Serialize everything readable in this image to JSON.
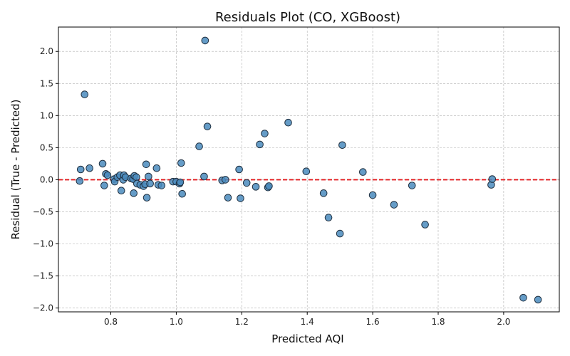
{
  "chart_data": {
    "type": "scatter",
    "title": "Residuals Plot (CO, XGBoost)",
    "xlabel": "Predicted AQI",
    "ylabel": "Residual (True - Predicted)",
    "xlim": [
      0.64,
      2.17
    ],
    "ylim": [
      -2.06,
      2.38
    ],
    "xticks": [
      0.8,
      1.0,
      1.2,
      1.4,
      1.6,
      1.8,
      2.0
    ],
    "xtick_labels": [
      "0.8",
      "1.0",
      "1.2",
      "1.4",
      "1.6",
      "1.8",
      "2.0"
    ],
    "yticks": [
      -2.0,
      -1.5,
      -1.0,
      -0.5,
      0.0,
      0.5,
      1.0,
      1.5,
      2.0
    ],
    "ytick_labels": [
      "−2.0",
      "−1.5",
      "−1.0",
      "−0.5",
      "0.0",
      "0.5",
      "1.0",
      "1.5",
      "2.0"
    ],
    "grid": true,
    "reference_line": {
      "y": 0,
      "style": "dashed",
      "color": "#e31a1c"
    },
    "marker_color": "#4a8bbd",
    "marker_edge_color": "#1f2f3f",
    "points": [
      {
        "x": 0.705,
        "y": -0.02
      },
      {
        "x": 0.708,
        "y": 0.16
      },
      {
        "x": 0.72,
        "y": 1.33
      },
      {
        "x": 0.735,
        "y": 0.18
      },
      {
        "x": 0.775,
        "y": 0.25
      },
      {
        "x": 0.78,
        "y": -0.09
      },
      {
        "x": 0.785,
        "y": 0.09
      },
      {
        "x": 0.79,
        "y": 0.07
      },
      {
        "x": 0.81,
        "y": 0.01
      },
      {
        "x": 0.812,
        "y": -0.03
      },
      {
        "x": 0.82,
        "y": 0.04
      },
      {
        "x": 0.828,
        "y": 0.07
      },
      {
        "x": 0.832,
        "y": -0.17
      },
      {
        "x": 0.838,
        "y": 0.0
      },
      {
        "x": 0.84,
        "y": 0.07
      },
      {
        "x": 0.845,
        "y": 0.04
      },
      {
        "x": 0.862,
        "y": 0.02
      },
      {
        "x": 0.868,
        "y": 0.01
      },
      {
        "x": 0.87,
        "y": -0.21
      },
      {
        "x": 0.872,
        "y": 0.06
      },
      {
        "x": 0.878,
        "y": 0.04
      },
      {
        "x": 0.88,
        "y": -0.06
      },
      {
        "x": 0.89,
        "y": -0.08
      },
      {
        "x": 0.9,
        "y": -0.1
      },
      {
        "x": 0.905,
        "y": -0.07
      },
      {
        "x": 0.908,
        "y": 0.24
      },
      {
        "x": 0.91,
        "y": -0.28
      },
      {
        "x": 0.915,
        "y": 0.05
      },
      {
        "x": 0.92,
        "y": -0.06
      },
      {
        "x": 0.94,
        "y": 0.18
      },
      {
        "x": 0.945,
        "y": -0.08
      },
      {
        "x": 0.955,
        "y": -0.09
      },
      {
        "x": 0.99,
        "y": -0.03
      },
      {
        "x": 1.0,
        "y": -0.03
      },
      {
        "x": 1.01,
        "y": -0.06
      },
      {
        "x": 1.012,
        "y": -0.04
      },
      {
        "x": 1.015,
        "y": 0.26
      },
      {
        "x": 1.018,
        "y": -0.22
      },
      {
        "x": 1.07,
        "y": 0.52
      },
      {
        "x": 1.085,
        "y": 0.05
      },
      {
        "x": 1.088,
        "y": 2.17
      },
      {
        "x": 1.095,
        "y": 0.83
      },
      {
        "x": 1.14,
        "y": -0.01
      },
      {
        "x": 1.15,
        "y": 0.0
      },
      {
        "x": 1.158,
        "y": -0.28
      },
      {
        "x": 1.192,
        "y": 0.16
      },
      {
        "x": 1.196,
        "y": -0.29
      },
      {
        "x": 1.215,
        "y": -0.05
      },
      {
        "x": 1.243,
        "y": -0.11
      },
      {
        "x": 1.255,
        "y": 0.55
      },
      {
        "x": 1.27,
        "y": 0.72
      },
      {
        "x": 1.28,
        "y": -0.12
      },
      {
        "x": 1.283,
        "y": -0.1
      },
      {
        "x": 1.342,
        "y": 0.89
      },
      {
        "x": 1.397,
        "y": 0.13
      },
      {
        "x": 1.45,
        "y": -0.21
      },
      {
        "x": 1.465,
        "y": -0.59
      },
      {
        "x": 1.5,
        "y": -0.84
      },
      {
        "x": 1.507,
        "y": 0.54
      },
      {
        "x": 1.57,
        "y": 0.12
      },
      {
        "x": 1.6,
        "y": -0.24
      },
      {
        "x": 1.665,
        "y": -0.39
      },
      {
        "x": 1.72,
        "y": -0.09
      },
      {
        "x": 1.76,
        "y": -0.7
      },
      {
        "x": 1.962,
        "y": -0.08
      },
      {
        "x": 1.965,
        "y": 0.01
      },
      {
        "x": 2.06,
        "y": -1.84
      },
      {
        "x": 2.105,
        "y": -1.87
      }
    ]
  }
}
